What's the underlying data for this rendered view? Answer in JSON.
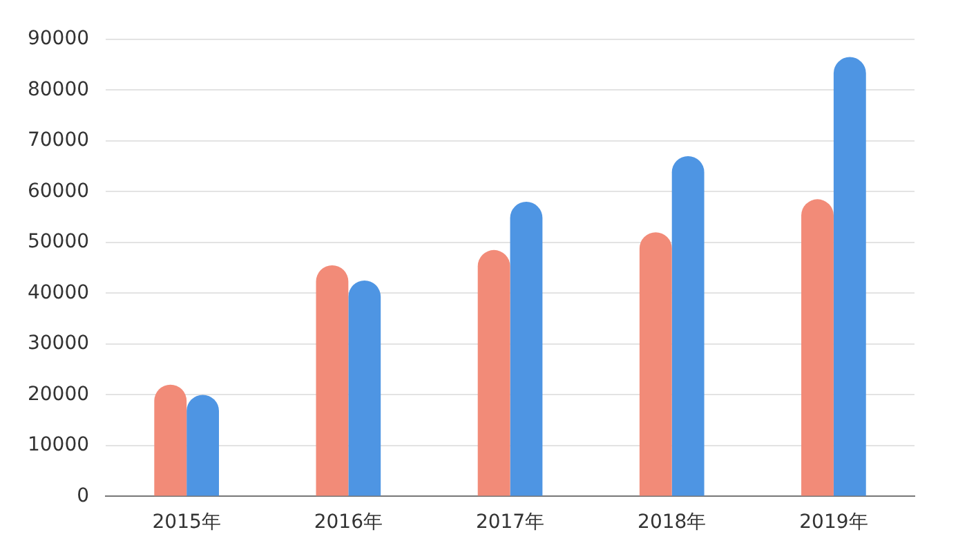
{
  "chart_data": {
    "type": "bar",
    "categories": [
      "2015年",
      "2016年",
      "2017年",
      "2018年",
      "2019年"
    ],
    "series": [
      {
        "color": "#f28b78",
        "values": [
          22000,
          45500,
          48500,
          52000,
          58500
        ]
      },
      {
        "color": "#4e95e3",
        "values": [
          20000,
          42500,
          58000,
          67000,
          86500
        ]
      }
    ],
    "ylim": [
      0,
      90000
    ],
    "yticks": [
      0,
      10000,
      20000,
      30000,
      40000,
      50000,
      60000,
      70000,
      80000,
      90000
    ],
    "grid": "y",
    "legend": false
  }
}
